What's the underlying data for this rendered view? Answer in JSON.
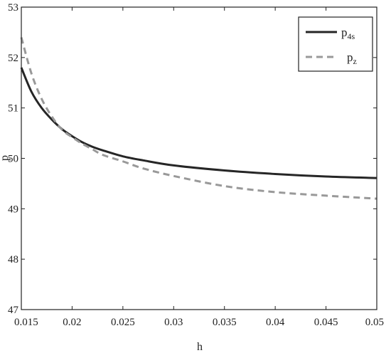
{
  "chart_data": {
    "type": "line",
    "xlabel": "h",
    "ylabel": "p",
    "xlim": [
      0.015,
      0.05
    ],
    "ylim": [
      47,
      53
    ],
    "xticks": [
      "0.015",
      "0.02",
      "0.025",
      "0.03",
      "0.035",
      "0.04",
      "0.045",
      "0.05"
    ],
    "yticks": [
      "47",
      "48",
      "49",
      "50",
      "51",
      "52",
      "53"
    ],
    "grid": false,
    "legend_position": "top-right",
    "series": [
      {
        "name": "p",
        "name_sub": "4s",
        "color": "#262626",
        "style": "solid",
        "x": [
          0.015,
          0.016,
          0.017,
          0.018,
          0.019,
          0.02,
          0.021,
          0.022,
          0.023,
          0.025,
          0.027,
          0.03,
          0.035,
          0.04,
          0.045,
          0.05
        ],
        "y": [
          51.8,
          51.32,
          51.0,
          50.77,
          50.58,
          50.44,
          50.32,
          50.23,
          50.16,
          50.04,
          49.96,
          49.86,
          49.76,
          49.69,
          49.64,
          49.61
        ]
      },
      {
        "name": "p",
        "name_sub": "z",
        "color": "#999999",
        "style": "dashed",
        "x": [
          0.015,
          0.016,
          0.017,
          0.018,
          0.019,
          0.02,
          0.021,
          0.022,
          0.023,
          0.025,
          0.027,
          0.03,
          0.035,
          0.04,
          0.045,
          0.05
        ],
        "y": [
          52.4,
          51.68,
          51.18,
          50.83,
          50.57,
          50.42,
          50.29,
          50.18,
          50.07,
          49.94,
          49.8,
          49.65,
          49.45,
          49.33,
          49.26,
          49.2
        ]
      }
    ]
  }
}
